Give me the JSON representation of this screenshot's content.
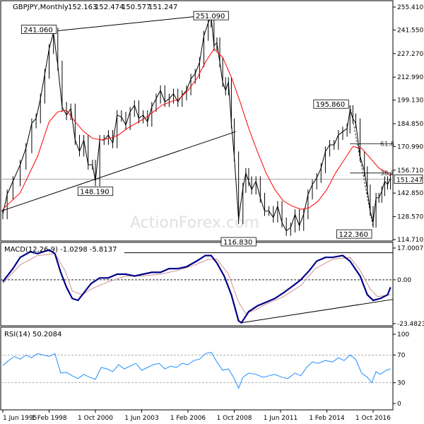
{
  "chart_data": [
    {
      "type": "line",
      "panel": "price",
      "title": "GBPJPY,Monthly",
      "ohlc": {
        "open": "152.163",
        "high": "152.474",
        "low": "150.577",
        "close": "151.247"
      },
      "y_ticks": [
        "255.410",
        "241.550",
        "227.270",
        "212.990",
        "199.130",
        "184.850",
        "170.990",
        "156.710",
        "142.850",
        "128.570",
        "114.710"
      ],
      "ylim": [
        114.71,
        255.41
      ],
      "current_price_label": "151.247",
      "annotations": [
        {
          "text": "251.090",
          "x": "2007-06",
          "y": 251.09
        },
        {
          "text": "241.060",
          "x": "1998-08",
          "y": 241.06
        },
        {
          "text": "148.190",
          "x": "2000-10",
          "y": 148.19
        },
        {
          "text": "195.860",
          "x": "2015-06",
          "y": 195.86
        },
        {
          "text": "116.830",
          "x": "2009-01",
          "y": 116.83
        },
        {
          "text": "122.360",
          "x": "2016-10",
          "y": 122.36
        },
        {
          "text": "61.8",
          "x": "2017-06",
          "y": 172.6
        },
        {
          "text": "38.2",
          "x": "2017-06",
          "y": 155.0
        }
      ],
      "close_series": [
        [
          "1995-06",
          130
        ],
        [
          "1995-09",
          142
        ],
        [
          "1996-01",
          150
        ],
        [
          "1996-06",
          160
        ],
        [
          "1996-10",
          170
        ],
        [
          "1997-02",
          185
        ],
        [
          "1997-05",
          188
        ],
        [
          "1997-08",
          200
        ],
        [
          "1997-11",
          215
        ],
        [
          "1998-02",
          230
        ],
        [
          "1998-05",
          240
        ],
        [
          "1998-08",
          220
        ],
        [
          "1998-11",
          195
        ],
        [
          "1999-02",
          190
        ],
        [
          "1999-05",
          194
        ],
        [
          "1999-08",
          175
        ],
        [
          "1999-11",
          168
        ],
        [
          "2000-02",
          175
        ],
        [
          "2000-05",
          160
        ],
        [
          "2000-08",
          160
        ],
        [
          "2000-10",
          150
        ],
        [
          "2001-01",
          175
        ],
        [
          "2001-04",
          175
        ],
        [
          "2001-07",
          178
        ],
        [
          "2001-10",
          173
        ],
        [
          "2002-01",
          190
        ],
        [
          "2002-04",
          189
        ],
        [
          "2002-07",
          184
        ],
        [
          "2002-10",
          192
        ],
        [
          "2003-01",
          196
        ],
        [
          "2003-04",
          188
        ],
        [
          "2003-07",
          190
        ],
        [
          "2003-10",
          186
        ],
        [
          "2004-01",
          195
        ],
        [
          "2004-04",
          200
        ],
        [
          "2004-07",
          205
        ],
        [
          "2004-10",
          198
        ],
        [
          "2005-01",
          200
        ],
        [
          "2005-04",
          203
        ],
        [
          "2005-07",
          198
        ],
        [
          "2005-10",
          202
        ],
        [
          "2006-01",
          205
        ],
        [
          "2006-04",
          212
        ],
        [
          "2006-07",
          215
        ],
        [
          "2006-10",
          222
        ],
        [
          "2007-01",
          238
        ],
        [
          "2007-04",
          246
        ],
        [
          "2007-06",
          250
        ],
        [
          "2007-08",
          232
        ],
        [
          "2007-10",
          234
        ],
        [
          "2007-12",
          222
        ],
        [
          "2008-02",
          210
        ],
        [
          "2008-04",
          205
        ],
        [
          "2008-06",
          210
        ],
        [
          "2008-08",
          185
        ],
        [
          "2008-10",
          165
        ],
        [
          "2009-01",
          127
        ],
        [
          "2009-04",
          146
        ],
        [
          "2009-06",
          155
        ],
        [
          "2009-08",
          150
        ],
        [
          "2009-10",
          145
        ],
        [
          "2010-01",
          150
        ],
        [
          "2010-04",
          140
        ],
        [
          "2010-07",
          132
        ],
        [
          "2010-10",
          132
        ],
        [
          "2011-01",
          128
        ],
        [
          "2011-04",
          135
        ],
        [
          "2011-07",
          125
        ],
        [
          "2011-10",
          120
        ],
        [
          "2012-01",
          122
        ],
        [
          "2012-04",
          130
        ],
        [
          "2012-07",
          123
        ],
        [
          "2012-10",
          130
        ],
        [
          "2013-01",
          142
        ],
        [
          "2013-04",
          148
        ],
        [
          "2013-07",
          152
        ],
        [
          "2013-10",
          158
        ],
        [
          "2014-01",
          168
        ],
        [
          "2014-04",
          172
        ],
        [
          "2014-07",
          172
        ],
        [
          "2014-10",
          178
        ],
        [
          "2015-01",
          180
        ],
        [
          "2015-04",
          182
        ],
        [
          "2015-06",
          193
        ],
        [
          "2015-08",
          188
        ],
        [
          "2015-10",
          185
        ],
        [
          "2016-01",
          165
        ],
        [
          "2016-04",
          156
        ],
        [
          "2016-06",
          145
        ],
        [
          "2016-08",
          132
        ],
        [
          "2016-10",
          125
        ],
        [
          "2016-12",
          140
        ],
        [
          "2017-02",
          140
        ],
        [
          "2017-04",
          144
        ],
        [
          "2017-06",
          150
        ],
        [
          "2017-08",
          148
        ],
        [
          "2017-10",
          152
        ]
      ],
      "ma_series": [
        [
          "1995-06",
          133
        ],
        [
          "1996-06",
          143
        ],
        [
          "1997-06",
          165
        ],
        [
          "1998-02",
          186
        ],
        [
          "1998-08",
          192
        ],
        [
          "1999-02",
          193
        ],
        [
          "1999-08",
          186
        ],
        [
          "2000-02",
          180
        ],
        [
          "2000-08",
          176
        ],
        [
          "2001-02",
          175
        ],
        [
          "2001-08",
          176
        ],
        [
          "2002-02",
          178
        ],
        [
          "2002-08",
          182
        ],
        [
          "2003-02",
          185
        ],
        [
          "2003-08",
          188
        ],
        [
          "2004-02",
          192
        ],
        [
          "2004-08",
          196
        ],
        [
          "2005-02",
          198
        ],
        [
          "2005-08",
          200
        ],
        [
          "2006-02",
          205
        ],
        [
          "2006-08",
          212
        ],
        [
          "2007-02",
          222
        ],
        [
          "2007-08",
          230
        ],
        [
          "2008-02",
          225
        ],
        [
          "2008-08",
          213
        ],
        [
          "2009-02",
          198
        ],
        [
          "2009-08",
          182
        ],
        [
          "2010-02",
          168
        ],
        [
          "2010-08",
          155
        ],
        [
          "2011-02",
          145
        ],
        [
          "2011-08",
          138
        ],
        [
          "2012-02",
          135
        ],
        [
          "2012-08",
          133
        ],
        [
          "2013-02",
          134
        ],
        [
          "2013-08",
          138
        ],
        [
          "2014-02",
          145
        ],
        [
          "2014-08",
          155
        ],
        [
          "2015-02",
          163
        ],
        [
          "2015-08",
          171
        ],
        [
          "2016-02",
          170
        ],
        [
          "2016-08",
          164
        ],
        [
          "2017-02",
          158
        ],
        [
          "2017-08",
          155
        ],
        [
          "2017-10",
          153
        ]
      ]
    },
    {
      "type": "line",
      "panel": "macd",
      "label": "MACD(12,26,9) -1.0298 -5.8137",
      "y_ticks": [
        "17.0007",
        "0.00",
        "-23.4823"
      ],
      "ylim": [
        -23.4823,
        17.0007
      ],
      "macd_series": [
        [
          "1995-06",
          -1
        ],
        [
          "1996-01",
          6
        ],
        [
          "1996-06",
          12
        ],
        [
          "1997-01",
          15
        ],
        [
          "1997-06",
          14
        ],
        [
          "1998-02",
          16
        ],
        [
          "1998-06",
          14
        ],
        [
          "1998-10",
          4
        ],
        [
          "1999-02",
          -4
        ],
        [
          "1999-06",
          -10
        ],
        [
          "1999-10",
          -11
        ],
        [
          "2000-03",
          -6
        ],
        [
          "2000-07",
          -2
        ],
        [
          "2001-01",
          1
        ],
        [
          "2001-07",
          1
        ],
        [
          "2002-01",
          3
        ],
        [
          "2002-07",
          3
        ],
        [
          "2003-01",
          2
        ],
        [
          "2003-07",
          3
        ],
        [
          "2004-01",
          4
        ],
        [
          "2004-07",
          4
        ],
        [
          "2005-01",
          6
        ],
        [
          "2005-07",
          6
        ],
        [
          "2006-01",
          7
        ],
        [
          "2006-08",
          10
        ],
        [
          "2007-02",
          13
        ],
        [
          "2007-06",
          13
        ],
        [
          "2007-10",
          9
        ],
        [
          "2008-03",
          2
        ],
        [
          "2008-08",
          -8
        ],
        [
          "2009-01",
          -22
        ],
        [
          "2009-03",
          -23
        ],
        [
          "2009-08",
          -17
        ],
        [
          "2010-02",
          -14
        ],
        [
          "2010-08",
          -12
        ],
        [
          "2011-02",
          -10
        ],
        [
          "2011-08",
          -7
        ],
        [
          "2012-03",
          -3
        ],
        [
          "2012-08",
          0
        ],
        [
          "2013-02",
          5
        ],
        [
          "2013-07",
          10
        ],
        [
          "2014-01",
          12
        ],
        [
          "2014-06",
          12
        ],
        [
          "2015-01",
          13
        ],
        [
          "2015-06",
          10
        ],
        [
          "2016-01",
          2
        ],
        [
          "2016-06",
          -8
        ],
        [
          "2016-10",
          -11
        ],
        [
          "2017-03",
          -10
        ],
        [
          "2017-08",
          -8
        ],
        [
          "2017-10",
          -4
        ]
      ],
      "signal_series": [
        [
          "1995-06",
          -2
        ],
        [
          "1996-06",
          8
        ],
        [
          "1997-06",
          13
        ],
        [
          "1998-06",
          14
        ],
        [
          "1999-01",
          5
        ],
        [
          "1999-06",
          -6
        ],
        [
          "2000-01",
          -8
        ],
        [
          "2000-07",
          -5
        ],
        [
          "2001-07",
          -1
        ],
        [
          "2002-07",
          2
        ],
        [
          "2003-07",
          2
        ],
        [
          "2004-07",
          3
        ],
        [
          "2005-07",
          5
        ],
        [
          "2006-07",
          8
        ],
        [
          "2007-04",
          11
        ],
        [
          "2007-10",
          11
        ],
        [
          "2008-06",
          3
        ],
        [
          "2009-01",
          -12
        ],
        [
          "2009-06",
          -18
        ],
        [
          "2010-01",
          -16
        ],
        [
          "2010-08",
          -13
        ],
        [
          "2011-08",
          -9
        ],
        [
          "2012-08",
          -3
        ],
        [
          "2013-06",
          6
        ],
        [
          "2014-06",
          11
        ],
        [
          "2015-06",
          12
        ],
        [
          "2016-01",
          5
        ],
        [
          "2016-08",
          -5
        ],
        [
          "2017-01",
          -9
        ],
        [
          "2017-10",
          -8
        ]
      ]
    },
    {
      "type": "line",
      "panel": "rsi",
      "label": "RSI(14) 50.2084",
      "y_ticks": [
        "100",
        "70",
        "30",
        "0"
      ],
      "ylim": [
        0,
        100
      ],
      "rsi_series": [
        [
          "1995-06",
          55
        ],
        [
          "1995-10",
          62
        ],
        [
          "1996-02",
          68
        ],
        [
          "1996-06",
          64
        ],
        [
          "1996-10",
          70
        ],
        [
          "1997-02",
          66
        ],
        [
          "1997-06",
          72
        ],
        [
          "1998-02",
          68
        ],
        [
          "1998-06",
          72
        ],
        [
          "1998-10",
          44
        ],
        [
          "1999-02",
          45
        ],
        [
          "1999-06",
          40
        ],
        [
          "1999-10",
          36
        ],
        [
          "2000-02",
          42
        ],
        [
          "2000-06",
          38
        ],
        [
          "2000-10",
          35
        ],
        [
          "2001-02",
          52
        ],
        [
          "2001-06",
          50
        ],
        [
          "2001-10",
          46
        ],
        [
          "2002-02",
          56
        ],
        [
          "2002-06",
          50
        ],
        [
          "2002-10",
          54
        ],
        [
          "2003-02",
          58
        ],
        [
          "2003-06",
          48
        ],
        [
          "2003-10",
          52
        ],
        [
          "2004-02",
          56
        ],
        [
          "2004-06",
          58
        ],
        [
          "2004-10",
          50
        ],
        [
          "2005-02",
          54
        ],
        [
          "2005-06",
          52
        ],
        [
          "2005-10",
          58
        ],
        [
          "2006-02",
          56
        ],
        [
          "2006-06",
          62
        ],
        [
          "2006-10",
          64
        ],
        [
          "2007-02",
          72
        ],
        [
          "2007-06",
          74
        ],
        [
          "2007-10",
          60
        ],
        [
          "2008-02",
          48
        ],
        [
          "2008-06",
          50
        ],
        [
          "2008-10",
          36
        ],
        [
          "2009-01",
          22
        ],
        [
          "2009-04",
          38
        ],
        [
          "2009-08",
          44
        ],
        [
          "2010-01",
          42
        ],
        [
          "2010-06",
          38
        ],
        [
          "2010-10",
          40
        ],
        [
          "2011-02",
          42
        ],
        [
          "2011-07",
          38
        ],
        [
          "2011-11",
          36
        ],
        [
          "2012-04",
          44
        ],
        [
          "2012-08",
          40
        ],
        [
          "2012-12",
          52
        ],
        [
          "2013-04",
          60
        ],
        [
          "2013-08",
          58
        ],
        [
          "2014-01",
          62
        ],
        [
          "2014-06",
          60
        ],
        [
          "2014-10",
          66
        ],
        [
          "2015-02",
          62
        ],
        [
          "2015-06",
          70
        ],
        [
          "2015-10",
          64
        ],
        [
          "2016-02",
          44
        ],
        [
          "2016-06",
          38
        ],
        [
          "2016-09",
          30
        ],
        [
          "2016-12",
          46
        ],
        [
          "2017-03",
          42
        ],
        [
          "2017-07",
          48
        ],
        [
          "2017-10",
          50
        ]
      ]
    }
  ],
  "x_axis_labels": [
    "1 Jun 1995",
    "1 Feb 1998",
    "1 Oct 2000",
    "1 Jun 2003",
    "1 Feb 2006",
    "1 Oct 2008",
    "1 Jun 2011",
    "1 Feb 2014",
    "1 Oct 2016"
  ],
  "watermark": "ActionForex.com",
  "colors": {
    "price": "#000000",
    "ma": "#ff0000",
    "macd": "#00008b",
    "signal": "#d09090",
    "rsi": "#1e90ff",
    "grid": "#999999"
  }
}
